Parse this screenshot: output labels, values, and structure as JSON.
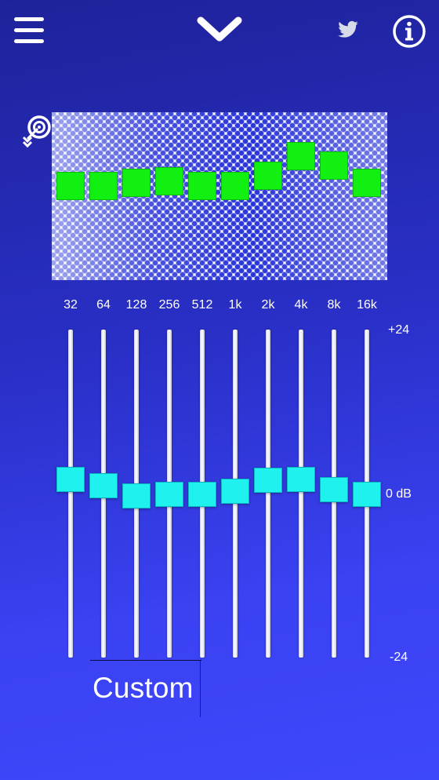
{
  "toolbar": {
    "menu_icon": "hamburger-menu-icon",
    "collapse_icon": "chevron-down-icon",
    "share_icon": "twitter-bird-icon",
    "info_icon": "info-circle-icon"
  },
  "visualizer": {
    "mode_icon": "target-with-arrow-icon",
    "bar_color": "#12f012",
    "levels": [
      0.56,
      0.56,
      0.58,
      0.59,
      0.56,
      0.56,
      0.62,
      0.74,
      0.68,
      0.58
    ]
  },
  "equalizer": {
    "bands": [
      "32",
      "64",
      "128",
      "256",
      "512",
      "1k",
      "2k",
      "4k",
      "8k",
      "16k"
    ],
    "gains_db": [
      2.1,
      1.1,
      -0.4,
      -0.1,
      -0.1,
      0.4,
      1.9,
      2.1,
      0.6,
      -0.1
    ],
    "scale": {
      "max": "+24",
      "mid": "0 dB",
      "min": "-24"
    },
    "thumb_color": "#1ff1ef"
  },
  "preset": {
    "name": "Custom"
  }
}
